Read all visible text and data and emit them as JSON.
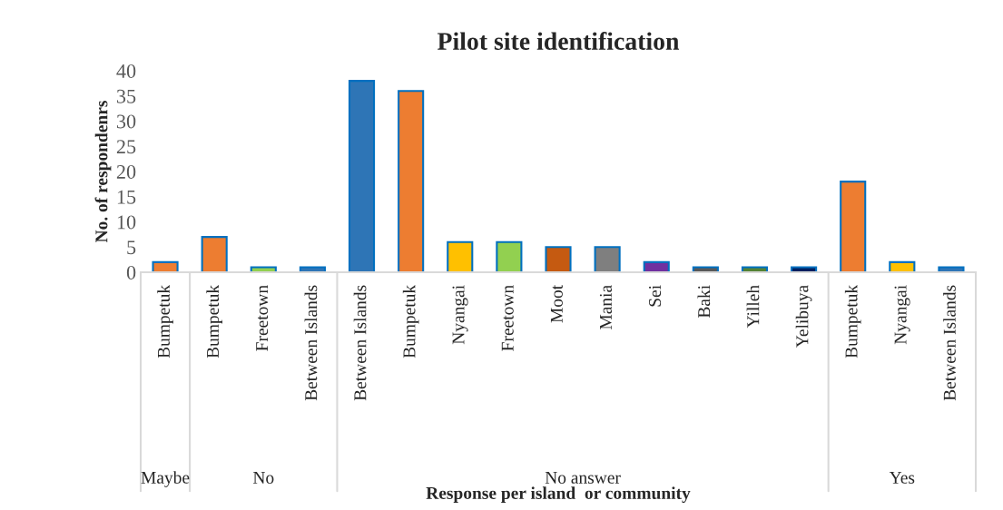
{
  "chart_data": {
    "type": "bar",
    "title": "Pilot site identification",
    "xlabel": "Response per island  or community",
    "ylabel": "No. of respondenrs",
    "categories": [
      "Bumpetuk",
      "Bumpetuk",
      "Freetown",
      "Between Islands",
      "Between Islands",
      "Bumpetuk",
      "Nyangai",
      "Freetown",
      "Moot",
      "Mania",
      "Sei",
      "Baki",
      "Yilleh",
      "Yelibuya",
      "Bumpetuk",
      "Nyangai",
      "Between Islands"
    ],
    "values": [
      2,
      7,
      1,
      1,
      38,
      36,
      6,
      6,
      5,
      5,
      2,
      1,
      1,
      1,
      18,
      2,
      1
    ],
    "colors": [
      "#ed7d31",
      "#ed7d31",
      "#92d050",
      "#2e75b6",
      "#2e75b6",
      "#ed7d31",
      "#ffc000",
      "#92d050",
      "#c55a11",
      "#7f7f7f",
      "#7030a0",
      "#595959",
      "#548235",
      "#002060",
      "#ed7d31",
      "#ffc000",
      "#2e75b6"
    ],
    "ylim": [
      0,
      40
    ],
    "yticks": [
      0,
      5,
      10,
      15,
      20,
      25,
      30,
      35,
      40
    ],
    "grid": false,
    "annotations": [
      "Maybe",
      "No",
      "No answer",
      "Yes"
    ]
  }
}
